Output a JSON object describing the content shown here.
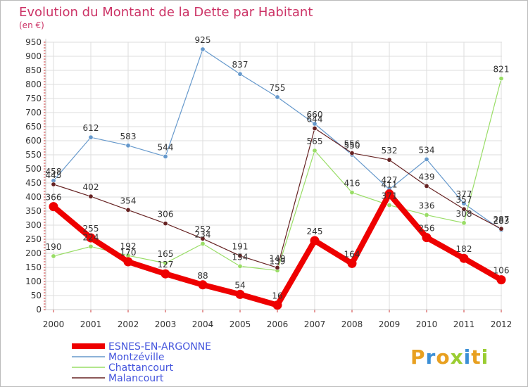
{
  "chart_data": {
    "type": "line",
    "title": "Evolution du Montant de la Dette par Habitant",
    "subtitle": "(en €)",
    "categories": [
      "2000",
      "2001",
      "2002",
      "2003",
      "2004",
      "2005",
      "2006",
      "2007",
      "2008",
      "2009",
      "2010",
      "2011",
      "2012"
    ],
    "ylim": [
      0,
      950
    ],
    "yticks": [
      0,
      50,
      100,
      150,
      200,
      250,
      300,
      350,
      400,
      450,
      500,
      550,
      600,
      650,
      700,
      750,
      800,
      850,
      900,
      950
    ],
    "grid": true,
    "legend_position": "bottom-left",
    "series": [
      {
        "name": "ESNES-EN-ARGONNE",
        "color": "#ee0000",
        "values": [
          366,
          255,
          170,
          127,
          88,
          54,
          16,
          245,
          164,
          411,
          256,
          182,
          106
        ]
      },
      {
        "name": "Montzéville",
        "color": "#6699cc",
        "values": [
          458,
          612,
          583,
          544,
          925,
          837,
          755,
          660,
          550,
          427,
          534,
          377,
          283
        ]
      },
      {
        "name": "Chattancourt",
        "color": "#99dd66",
        "values": [
          190,
          224,
          192,
          165,
          234,
          154,
          139,
          565,
          416,
          371,
          336,
          308,
          821
        ]
      },
      {
        "name": "Malancourt",
        "color": "#662222",
        "values": [
          445,
          402,
          354,
          306,
          252,
          191,
          149,
          644,
          556,
          532,
          439,
          357,
          287
        ]
      }
    ],
    "colors": {
      "title": "#cc3366",
      "subtitle": "#cc3366",
      "legend_text": "#4455dd",
      "grid": "#dddddd",
      "axis": "#cccccc",
      "tick_marks": "#cc3333",
      "border": "#bbbbbb"
    }
  },
  "logo": {
    "text": "Proxiti"
  }
}
